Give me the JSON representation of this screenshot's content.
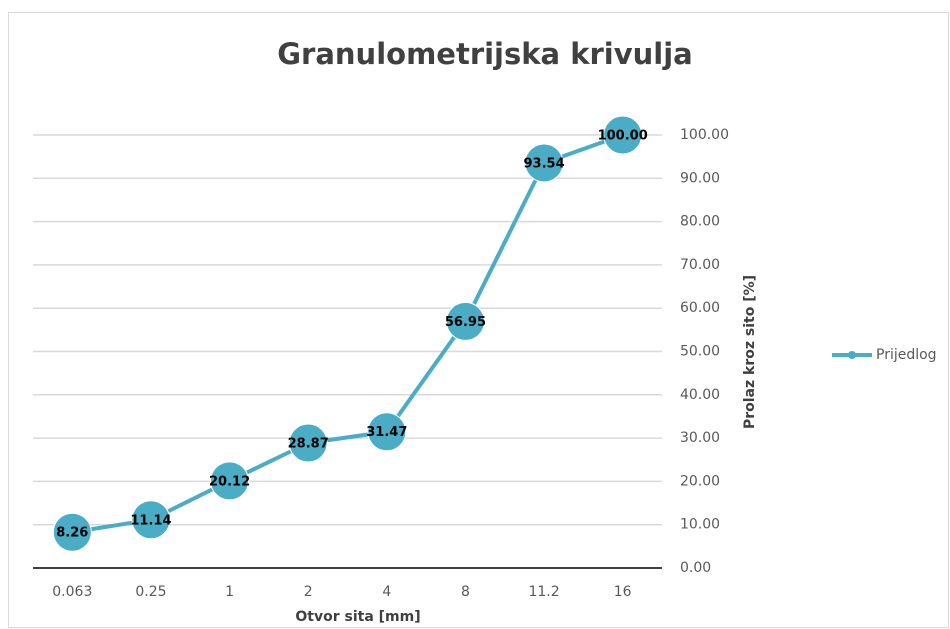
{
  "chart_data": {
    "type": "line",
    "title": "Granulometrijska krivulja",
    "x_label": "Otvor sita [mm]",
    "y_label": "Prolaz kroz sito [%]",
    "categories": [
      "0.063",
      "0.25",
      "1",
      "2",
      "4",
      "8",
      "11.2",
      "16"
    ],
    "series": [
      {
        "name": "Prijedlog",
        "color": "#4bacc6",
        "values": [
          8.26,
          11.14,
          20.12,
          28.87,
          31.47,
          56.95,
          93.54,
          100
        ],
        "value_labels": [
          "8.26",
          "11.14",
          "20.12",
          "28.87",
          "31.47",
          "56.95",
          "93.54",
          "100.00"
        ]
      }
    ],
    "ylim": [
      0,
      100
    ],
    "yticks": [
      {
        "value": 0,
        "label": "0.00"
      },
      {
        "value": 10,
        "label": "10.00"
      },
      {
        "value": 20,
        "label": "20.00"
      },
      {
        "value": 30,
        "label": "30.00"
      },
      {
        "value": 40,
        "label": "40.00"
      },
      {
        "value": 50,
        "label": "50.00"
      },
      {
        "value": 60,
        "label": "60.00"
      },
      {
        "value": 70,
        "label": "70.00"
      },
      {
        "value": 80,
        "label": "80.00"
      },
      {
        "value": 90,
        "label": "90.00"
      },
      {
        "value": 100,
        "label": "100.00"
      }
    ],
    "grid": true,
    "y_axis_side": "right",
    "legend": "right"
  }
}
